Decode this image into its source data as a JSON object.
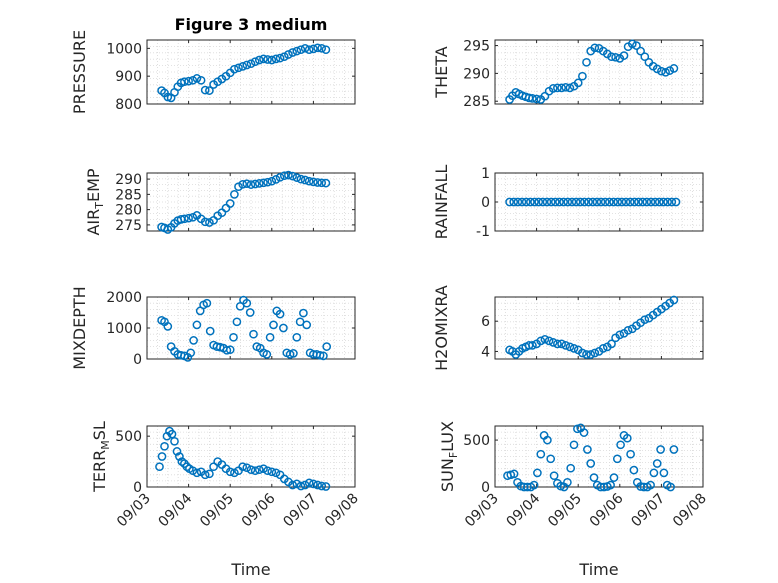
{
  "figure": {
    "title": "Figure 3 medium"
  },
  "colors": {
    "series": "#0072BD",
    "axes": "#262626",
    "grid": "#d9d9d9"
  },
  "chart_data": [
    {
      "id": "pressure",
      "type": "scatter",
      "title": "Figure 3 medium",
      "ylabel": "PRESSURE",
      "ylabel_sub": "",
      "ylim": [
        800,
        1030
      ],
      "yticks": [
        800,
        900,
        1000
      ],
      "ytick_labels": [
        "800",
        "900",
        "1000"
      ],
      "xlim": [
        0,
        5
      ],
      "show_xticklabels": false,
      "xlabel": "",
      "x": [
        0.35,
        0.42,
        0.5,
        0.58,
        0.66,
        0.74,
        0.82,
        0.9,
        1.0,
        1.1,
        1.2,
        1.3,
        1.4,
        1.5,
        1.6,
        1.7,
        1.8,
        1.9,
        2.0,
        2.1,
        2.2,
        2.3,
        2.4,
        2.5,
        2.6,
        2.7,
        2.8,
        2.9,
        3.0,
        3.1,
        3.2,
        3.3,
        3.4,
        3.5,
        3.6,
        3.7,
        3.8,
        3.9,
        4.0,
        4.1,
        4.2,
        4.3
      ],
      "y": [
        848,
        840,
        825,
        822,
        842,
        862,
        876,
        880,
        882,
        885,
        892,
        885,
        850,
        848,
        870,
        880,
        890,
        900,
        912,
        925,
        930,
        935,
        940,
        945,
        952,
        958,
        962,
        960,
        958,
        962,
        965,
        970,
        978,
        985,
        990,
        995,
        1000,
        995,
        998,
        1002,
        1000,
        995
      ]
    },
    {
      "id": "theta",
      "type": "scatter",
      "title": "",
      "ylabel": "THETA",
      "ylabel_sub": "",
      "ylim": [
        284.5,
        296
      ],
      "yticks": [
        285,
        290,
        295
      ],
      "ytick_labels": [
        "285",
        "290",
        "295"
      ],
      "xlim": [
        0,
        5
      ],
      "show_xticklabels": false,
      "xlabel": "",
      "x": [
        0.35,
        0.42,
        0.5,
        0.58,
        0.66,
        0.74,
        0.82,
        0.9,
        1.0,
        1.1,
        1.2,
        1.3,
        1.4,
        1.5,
        1.6,
        1.7,
        1.8,
        1.9,
        2.0,
        2.1,
        2.2,
        2.3,
        2.4,
        2.5,
        2.6,
        2.7,
        2.8,
        2.9,
        3.0,
        3.1,
        3.2,
        3.3,
        3.4,
        3.5,
        3.6,
        3.7,
        3.8,
        3.9,
        4.0,
        4.1,
        4.2,
        4.3
      ],
      "y": [
        285.3,
        286.0,
        286.6,
        286.3,
        286.0,
        285.8,
        285.6,
        285.5,
        285.4,
        285.3,
        285.9,
        286.8,
        287.3,
        287.4,
        287.4,
        287.5,
        287.4,
        287.7,
        288.3,
        289.5,
        292.0,
        294.0,
        294.6,
        294.5,
        294.0,
        293.5,
        293.0,
        292.9,
        292.7,
        293.2,
        294.8,
        295.3,
        295.0,
        294.0,
        293.0,
        292.0,
        291.3,
        290.8,
        290.4,
        290.2,
        290.5,
        290.9
      ]
    },
    {
      "id": "air_temp",
      "type": "scatter",
      "title": "",
      "ylabel": "AIR",
      "ylabel_sub": "T",
      "ylabel_after": "EMP",
      "ylim": [
        273,
        292
      ],
      "yticks": [
        275,
        280,
        285,
        290
      ],
      "ytick_labels": [
        "275",
        "280",
        "285",
        "290"
      ],
      "xlim": [
        0,
        5
      ],
      "show_xticklabels": false,
      "xlabel": "",
      "x": [
        0.35,
        0.42,
        0.5,
        0.58,
        0.66,
        0.74,
        0.82,
        0.9,
        1.0,
        1.1,
        1.2,
        1.3,
        1.4,
        1.5,
        1.6,
        1.7,
        1.8,
        1.9,
        2.0,
        2.1,
        2.2,
        2.3,
        2.4,
        2.5,
        2.6,
        2.7,
        2.8,
        2.9,
        3.0,
        3.1,
        3.2,
        3.3,
        3.4,
        3.5,
        3.6,
        3.7,
        3.8,
        3.9,
        4.0,
        4.1,
        4.2,
        4.3
      ],
      "y": [
        274.3,
        274.0,
        273.5,
        274.2,
        275.5,
        276.4,
        276.8,
        277.0,
        277.2,
        277.5,
        278.1,
        277.0,
        276.0,
        275.8,
        276.5,
        278.0,
        279.0,
        280.5,
        282.0,
        285.0,
        287.5,
        288.3,
        288.5,
        288.2,
        288.4,
        288.6,
        288.8,
        289.0,
        289.3,
        289.9,
        290.6,
        291.1,
        291.3,
        291.0,
        290.5,
        290.0,
        289.7,
        289.3,
        289.1,
        288.9,
        288.8,
        288.7
      ]
    },
    {
      "id": "rainfall",
      "type": "scatter",
      "title": "",
      "ylabel": "RAINFALL",
      "ylabel_sub": "",
      "ylim": [
        -1,
        1
      ],
      "yticks": [
        -1,
        0,
        1
      ],
      "ytick_labels": [
        "-1",
        "0",
        "1"
      ],
      "xlim": [
        0,
        5
      ],
      "show_xticklabels": false,
      "xlabel": "",
      "x": [
        0.35,
        0.45,
        0.55,
        0.65,
        0.75,
        0.85,
        0.95,
        1.05,
        1.15,
        1.25,
        1.35,
        1.45,
        1.55,
        1.65,
        1.75,
        1.85,
        1.95,
        2.05,
        2.15,
        2.25,
        2.35,
        2.45,
        2.55,
        2.65,
        2.75,
        2.85,
        2.95,
        3.05,
        3.15,
        3.25,
        3.35,
        3.45,
        3.55,
        3.65,
        3.75,
        3.85,
        3.95,
        4.05,
        4.15,
        4.25,
        4.35
      ],
      "y": [
        0,
        0,
        0,
        0,
        0,
        0,
        0,
        0,
        0,
        0,
        0,
        0,
        0,
        0,
        0,
        0,
        0,
        0,
        0,
        0,
        0,
        0,
        0,
        0,
        0,
        0,
        0,
        0,
        0,
        0,
        0,
        0,
        0,
        0,
        0,
        0,
        0,
        0,
        0,
        0,
        0
      ]
    },
    {
      "id": "mixdepth",
      "type": "scatter",
      "title": "",
      "ylabel": "MIXDEPTH",
      "ylabel_sub": "",
      "ylim": [
        0,
        2000
      ],
      "yticks": [
        0,
        1000,
        2000
      ],
      "ytick_labels": [
        "0",
        "1000",
        "2000"
      ],
      "xlim": [
        0,
        5
      ],
      "show_xticklabels": false,
      "xlabel": "",
      "x": [
        0.35,
        0.42,
        0.5,
        0.58,
        0.66,
        0.74,
        0.82,
        0.9,
        0.98,
        1.05,
        1.12,
        1.2,
        1.28,
        1.36,
        1.44,
        1.52,
        1.6,
        1.68,
        1.76,
        1.84,
        1.92,
        2.0,
        2.08,
        2.16,
        2.24,
        2.32,
        2.4,
        2.48,
        2.56,
        2.64,
        2.72,
        2.8,
        2.88,
        2.96,
        3.04,
        3.12,
        3.2,
        3.28,
        3.36,
        3.44,
        3.52,
        3.6,
        3.68,
        3.76,
        3.84,
        3.92,
        4.0,
        4.08,
        4.16,
        4.24,
        4.32
      ],
      "y": [
        1250,
        1200,
        1050,
        400,
        250,
        150,
        120,
        100,
        50,
        200,
        600,
        1100,
        1550,
        1750,
        1800,
        900,
        450,
        400,
        380,
        350,
        280,
        300,
        700,
        1200,
        1700,
        1900,
        1800,
        1500,
        800,
        400,
        350,
        200,
        150,
        700,
        1100,
        1550,
        1450,
        1000,
        200,
        150,
        180,
        700,
        1200,
        1480,
        1100,
        200,
        150,
        150,
        120,
        100,
        400
      ]
    },
    {
      "id": "h2omixra",
      "type": "scatter",
      "title": "",
      "ylabel": "H2OMIXRA",
      "ylabel_sub": "",
      "ylim": [
        3.5,
        7.6
      ],
      "yticks": [
        4,
        6
      ],
      "ytick_labels": [
        "4",
        "6"
      ],
      "xlim": [
        0,
        5
      ],
      "show_xticklabels": false,
      "xlabel": "",
      "x": [
        0.35,
        0.42,
        0.5,
        0.58,
        0.66,
        0.74,
        0.82,
        0.9,
        1.0,
        1.1,
        1.2,
        1.3,
        1.4,
        1.5,
        1.6,
        1.7,
        1.8,
        1.9,
        2.0,
        2.1,
        2.2,
        2.3,
        2.4,
        2.5,
        2.6,
        2.7,
        2.8,
        2.9,
        3.0,
        3.1,
        3.2,
        3.3,
        3.4,
        3.5,
        3.6,
        3.7,
        3.8,
        3.9,
        4.0,
        4.1,
        4.2,
        4.3
      ],
      "y": [
        4.1,
        4.0,
        3.8,
        4.0,
        4.2,
        4.3,
        4.4,
        4.4,
        4.5,
        4.7,
        4.8,
        4.7,
        4.6,
        4.5,
        4.5,
        4.4,
        4.3,
        4.2,
        4.1,
        3.9,
        3.8,
        3.8,
        3.9,
        4.0,
        4.2,
        4.3,
        4.5,
        4.9,
        5.1,
        5.2,
        5.4,
        5.5,
        5.7,
        5.9,
        6.1,
        6.2,
        6.4,
        6.6,
        6.8,
        7.0,
        7.2,
        7.4
      ]
    },
    {
      "id": "terr_msl",
      "type": "scatter",
      "title": "",
      "ylabel": "TERR",
      "ylabel_sub": "M",
      "ylabel_after": "SL",
      "ylim": [
        0,
        600
      ],
      "yticks": [
        0,
        500
      ],
      "ytick_labels": [
        "0",
        "500"
      ],
      "xlim": [
        0,
        5
      ],
      "show_xticklabels": true,
      "xlabel": "Time",
      "xticks": [
        0,
        1,
        2,
        3,
        4,
        5
      ],
      "xtick_labels": [
        "09/03",
        "09/04",
        "09/05",
        "09/06",
        "09/07",
        "09/08"
      ],
      "x": [
        0.3,
        0.36,
        0.42,
        0.48,
        0.54,
        0.6,
        0.66,
        0.72,
        0.78,
        0.84,
        0.9,
        0.96,
        1.02,
        1.1,
        1.2,
        1.3,
        1.4,
        1.5,
        1.6,
        1.7,
        1.8,
        1.9,
        2.0,
        2.1,
        2.2,
        2.3,
        2.4,
        2.5,
        2.6,
        2.7,
        2.8,
        2.9,
        3.0,
        3.1,
        3.2,
        3.3,
        3.4,
        3.5,
        3.6,
        3.7,
        3.8,
        3.9,
        4.0,
        4.1,
        4.2,
        4.3
      ],
      "y": [
        200,
        300,
        400,
        500,
        550,
        520,
        450,
        350,
        300,
        250,
        230,
        200,
        180,
        160,
        140,
        150,
        120,
        130,
        200,
        250,
        220,
        180,
        150,
        140,
        160,
        200,
        190,
        170,
        160,
        170,
        180,
        160,
        150,
        140,
        120,
        80,
        50,
        20,
        30,
        10,
        20,
        40,
        30,
        20,
        10,
        5
      ]
    },
    {
      "id": "sun_flux",
      "type": "scatter",
      "title": "",
      "ylabel": "SUN",
      "ylabel_sub": "F",
      "ylabel_after": "LUX",
      "ylim": [
        0,
        650
      ],
      "yticks": [
        0,
        500
      ],
      "ytick_labels": [
        "0",
        "500"
      ],
      "xlim": [
        0,
        5
      ],
      "show_xticklabels": true,
      "xlabel": "Time",
      "xticks": [
        0,
        1,
        2,
        3,
        4,
        5
      ],
      "xtick_labels": [
        "09/03",
        "09/04",
        "09/05",
        "09/06",
        "09/07",
        "09/08"
      ],
      "x": [
        0.3,
        0.38,
        0.46,
        0.54,
        0.62,
        0.7,
        0.78,
        0.86,
        0.94,
        1.02,
        1.1,
        1.18,
        1.26,
        1.34,
        1.42,
        1.5,
        1.58,
        1.66,
        1.74,
        1.82,
        1.9,
        1.98,
        2.06,
        2.14,
        2.22,
        2.3,
        2.38,
        2.46,
        2.54,
        2.62,
        2.7,
        2.78,
        2.86,
        2.94,
        3.02,
        3.1,
        3.18,
        3.26,
        3.34,
        3.42,
        3.5,
        3.58,
        3.66,
        3.74,
        3.82,
        3.9,
        3.98,
        4.06,
        4.14,
        4.22,
        4.3
      ],
      "y": [
        120,
        130,
        140,
        50,
        10,
        0,
        0,
        0,
        20,
        150,
        350,
        550,
        500,
        300,
        120,
        40,
        10,
        0,
        50,
        200,
        450,
        620,
        630,
        580,
        400,
        250,
        100,
        20,
        0,
        0,
        5,
        20,
        100,
        300,
        450,
        550,
        520,
        350,
        180,
        50,
        5,
        0,
        0,
        20,
        150,
        250,
        400,
        150,
        20,
        0,
        400
      ]
    }
  ]
}
